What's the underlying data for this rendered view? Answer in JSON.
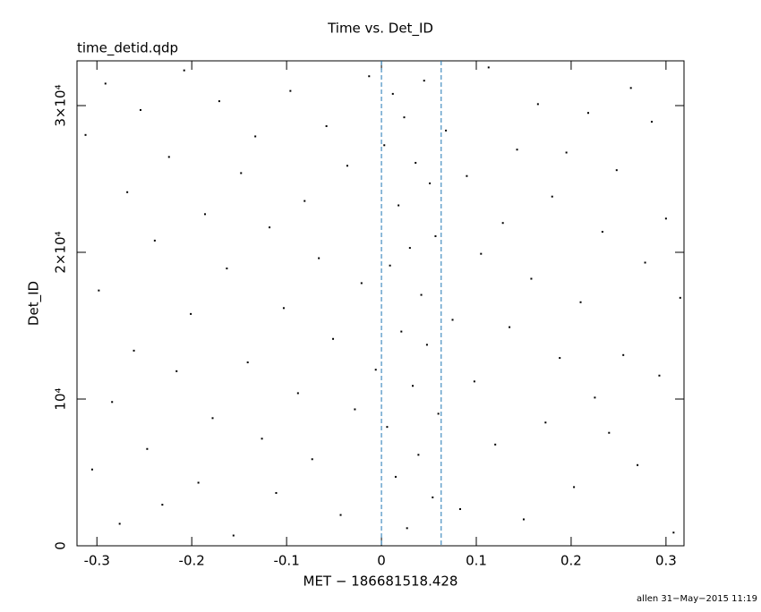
{
  "chart_data": {
    "type": "scatter",
    "title": "Time vs. Det_ID",
    "subtitle": "time_detid.qdp",
    "x_label": "MET − 186681518.428",
    "y_label": "Det_ID",
    "footer": "allen 31−May−2015 11:19",
    "color": "#000000",
    "marker_color": "#1f77b4",
    "markers": [
      0,
      0.063
    ],
    "xlim": [
      -0.321,
      0.319
    ],
    "ylim": [
      0,
      33050
    ],
    "xticks": [
      -0.3,
      -0.2,
      -0.1,
      0,
      0.1,
      0.2,
      0.3
    ],
    "yticks": [
      0,
      {
        "value": 10000,
        "label": "10⁴"
      },
      {
        "value": 20000,
        "label": "2×10⁴"
      },
      {
        "value": 30000,
        "label": "3×10⁴"
      }
    ],
    "x": [
      -0.312,
      -0.305,
      -0.298,
      -0.291,
      -0.284,
      -0.276,
      -0.268,
      -0.261,
      -0.254,
      -0.247,
      -0.239,
      -0.231,
      -0.224,
      -0.216,
      -0.208,
      -0.201,
      -0.193,
      -0.186,
      -0.178,
      -0.171,
      -0.163,
      -0.156,
      -0.148,
      -0.141,
      -0.133,
      -0.126,
      -0.118,
      -0.111,
      -0.103,
      -0.096,
      -0.088,
      -0.081,
      -0.073,
      -0.066,
      -0.058,
      -0.051,
      -0.043,
      -0.036,
      -0.028,
      -0.021,
      -0.013,
      -0.006,
      0.003,
      0.006,
      0.009,
      0.012,
      0.015,
      0.018,
      0.021,
      0.024,
      0.027,
      0.03,
      0.033,
      0.036,
      0.039,
      0.042,
      0.045,
      0.048,
      0.051,
      0.054,
      0.057,
      0.06,
      0.068,
      0.075,
      0.083,
      0.09,
      0.098,
      0.105,
      0.113,
      0.12,
      0.128,
      0.135,
      0.143,
      0.15,
      0.158,
      0.165,
      0.173,
      0.18,
      0.188,
      0.195,
      0.203,
      0.21,
      0.218,
      0.225,
      0.233,
      0.24,
      0.248,
      0.255,
      0.263,
      0.27,
      0.278,
      0.285,
      0.293,
      0.3,
      0.308,
      0.315
    ],
    "values": [
      28000,
      5200,
      17400,
      31500,
      9800,
      1500,
      24100,
      13300,
      29700,
      6600,
      20800,
      2800,
      26500,
      11900,
      32400,
      15800,
      4300,
      22600,
      8700,
      30300,
      18900,
      700,
      25400,
      12500,
      27900,
      7300,
      21700,
      3600,
      16200,
      31000,
      10400,
      23500,
      5900,
      19600,
      28600,
      14100,
      2100,
      25900,
      9300,
      17900,
      32000,
      12000,
      27300,
      8100,
      19100,
      30800,
      4700,
      23200,
      14600,
      29200,
      1200,
      20300,
      10900,
      26100,
      6200,
      17100,
      31700,
      13700,
      24700,
      3300,
      21100,
      9000,
      28300,
      15400,
      2500,
      25200,
      11200,
      19900,
      32600,
      6900,
      22000,
      14900,
      27000,
      1800,
      18200,
      30100,
      8400,
      23800,
      12800,
      26800,
      4000,
      16600,
      29500,
      10100,
      21400,
      7700,
      25600,
      13000,
      31200,
      5500,
      19300,
      28900,
      11600,
      22300,
      900,
      16900
    ]
  }
}
